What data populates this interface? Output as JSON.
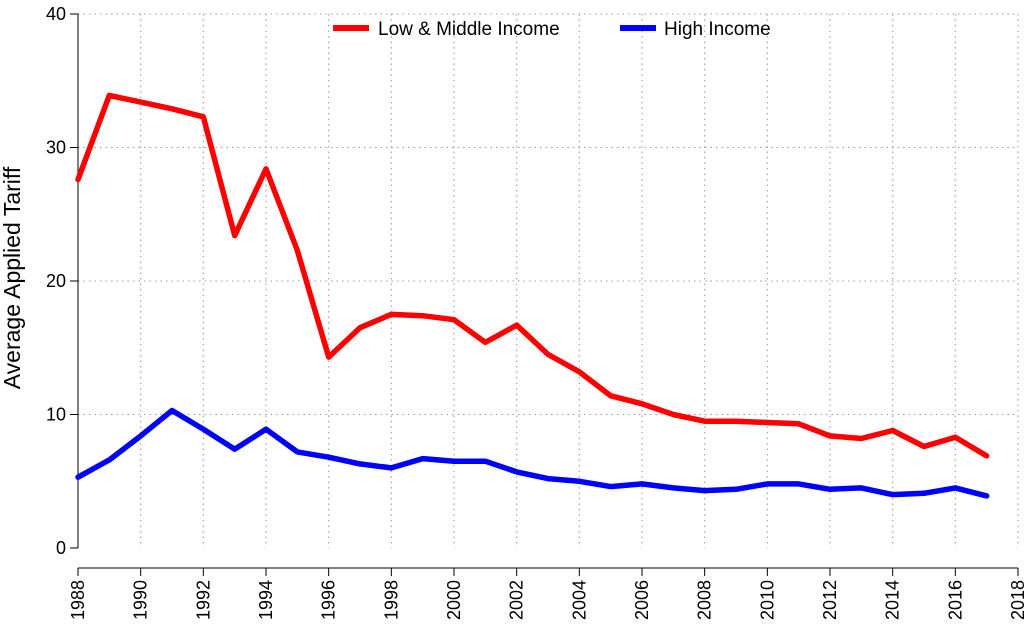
{
  "chart_data": {
    "type": "line",
    "title": "",
    "xlabel": "",
    "ylabel": "Average Applied Tariff",
    "xlim": [
      1988,
      2018
    ],
    "ylim": [
      0,
      40
    ],
    "x_ticks": [
      1988,
      1990,
      1992,
      1994,
      1996,
      1998,
      2000,
      2002,
      2004,
      2006,
      2008,
      2010,
      2012,
      2014,
      2016,
      2018
    ],
    "y_ticks": [
      0,
      10,
      20,
      30,
      40
    ],
    "grid": true,
    "legend_position": "top-center",
    "x": [
      1988,
      1989,
      1990,
      1991,
      1992,
      1993,
      1994,
      1995,
      1996,
      1997,
      1998,
      1999,
      2000,
      2001,
      2002,
      2003,
      2004,
      2005,
      2006,
      2007,
      2008,
      2009,
      2010,
      2011,
      2012,
      2013,
      2014,
      2015,
      2016,
      2017
    ],
    "series": [
      {
        "name": "Low & Middle Income",
        "color": "#ff0000",
        "values": [
          27.6,
          33.9,
          33.4,
          32.9,
          32.3,
          23.4,
          28.4,
          22.3,
          14.3,
          16.5,
          17.5,
          17.4,
          17.1,
          15.4,
          16.7,
          14.5,
          13.2,
          11.4,
          10.8,
          10.0,
          9.5,
          9.5,
          9.4,
          9.3,
          8.4,
          8.2,
          8.8,
          7.6,
          8.3,
          6.9
        ]
      },
      {
        "name": "High Income",
        "color": "#0000ff",
        "values": [
          5.3,
          6.6,
          8.4,
          10.3,
          8.9,
          7.4,
          8.9,
          7.2,
          6.8,
          6.3,
          6.0,
          6.7,
          6.5,
          6.5,
          5.7,
          5.2,
          5.0,
          4.6,
          4.8,
          4.5,
          4.3,
          4.4,
          4.8,
          4.8,
          4.4,
          4.5,
          4.0,
          4.1,
          4.5,
          3.9
        ]
      }
    ]
  }
}
